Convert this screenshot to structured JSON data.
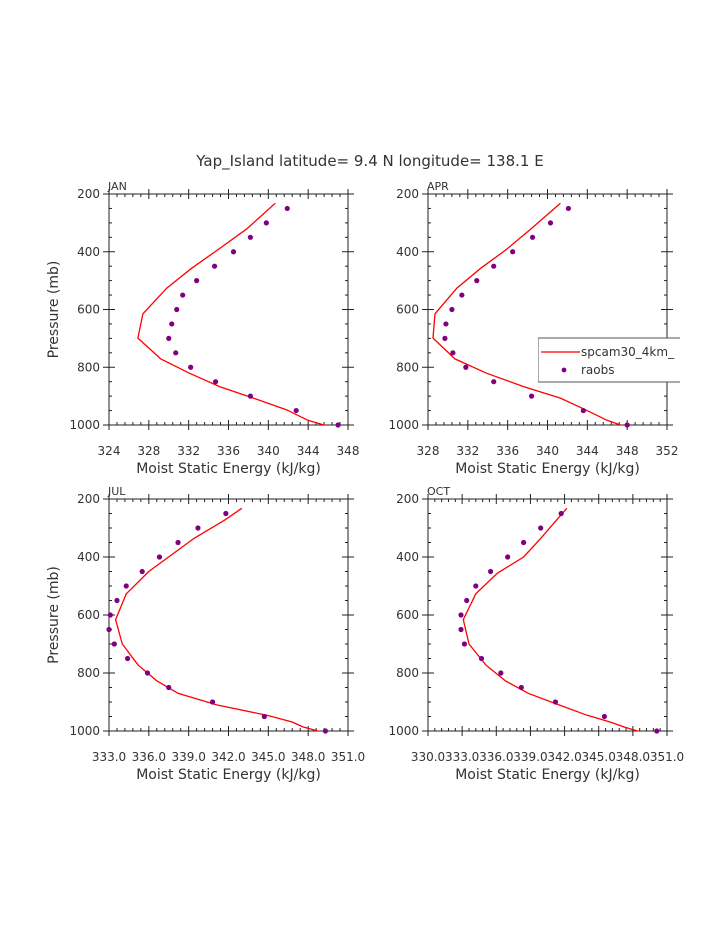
{
  "figure": {
    "title": "Yap_Island  latitude= 9.4 N longitude= 138.1 E"
  },
  "colors": {
    "model_line": "#ff0000",
    "obs_marker": "#800080",
    "axis": "#222222",
    "text": "#333333"
  },
  "chart_data": [
    {
      "type": "line",
      "panel": "JAN",
      "title": "JAN",
      "xlabel": "Moist Static Energy (kJ/kg)",
      "ylabel": "Pressure (mb)",
      "xlim": [
        324,
        348
      ],
      "ylim": [
        1000,
        200
      ],
      "y_inverted": true,
      "xticks": [
        324,
        328,
        332,
        336,
        340,
        344,
        348
      ],
      "xtick_labels": [
        "324",
        "328",
        "332",
        "336",
        "340",
        "344",
        "348"
      ],
      "yticks": [
        200,
        400,
        600,
        800,
        1000
      ],
      "ytick_labels": [
        "200",
        "400",
        "600",
        "800",
        "1000"
      ],
      "legend": null,
      "series": [
        {
          "name": "spcam30_4km_",
          "kind": "line",
          "pressure": [
            232,
            322,
            394,
            457,
            526,
            615,
            699,
            771,
            821,
            867,
            907,
            947,
            984,
            1003
          ],
          "mse": [
            340.7,
            337.8,
            334.9,
            332.3,
            329.8,
            327.4,
            326.9,
            329.2,
            332.1,
            335.1,
            338.5,
            341.8,
            344.0,
            345.9
          ]
        },
        {
          "name": "raobs",
          "kind": "marker",
          "pressure": [
            250,
            300,
            350,
            400,
            450,
            500,
            550,
            600,
            650,
            700,
            750,
            800,
            850,
            900,
            950,
            1000
          ],
          "mse": [
            341.9,
            339.8,
            338.2,
            336.5,
            334.6,
            332.8,
            331.4,
            330.8,
            330.3,
            330.0,
            330.7,
            332.2,
            334.7,
            338.2,
            342.8,
            347.0
          ]
        }
      ]
    },
    {
      "type": "line",
      "panel": "APR",
      "title": "APR",
      "xlabel": "Moist Static Energy (kJ/kg)",
      "ylabel": "",
      "xlim": [
        328,
        352
      ],
      "ylim": [
        1000,
        200
      ],
      "y_inverted": true,
      "xticks": [
        328,
        332,
        336,
        340,
        344,
        348,
        352
      ],
      "xtick_labels": [
        "328",
        "332",
        "336",
        "340",
        "344",
        "348",
        "352"
      ],
      "yticks": [
        200,
        400,
        600,
        800,
        1000
      ],
      "ytick_labels": [
        "200",
        "400",
        "600",
        "800",
        "1000"
      ],
      "legend": {
        "placement": "right",
        "entries": [
          {
            "label": "spcam30_4km_",
            "kind": "line"
          },
          {
            "label": "raobs",
            "kind": "marker"
          }
        ]
      },
      "series": [
        {
          "name": "spcam30_4km_",
          "kind": "line",
          "pressure": [
            232,
            322,
            394,
            457,
            526,
            615,
            699,
            771,
            821,
            867,
            907,
            947,
            984,
            1003
          ],
          "mse": [
            341.3,
            338.3,
            335.8,
            333.3,
            330.9,
            328.7,
            328.5,
            330.7,
            333.9,
            337.6,
            341.3,
            343.8,
            346.0,
            347.6
          ]
        },
        {
          "name": "raobs",
          "kind": "marker",
          "pressure": [
            250,
            300,
            350,
            400,
            450,
            500,
            550,
            600,
            650,
            700,
            750,
            800,
            850,
            900,
            950,
            1000
          ],
          "mse": [
            342.1,
            340.3,
            338.5,
            336.5,
            334.6,
            332.9,
            331.4,
            330.4,
            329.8,
            329.7,
            330.5,
            331.8,
            334.6,
            338.4,
            343.6,
            348.0
          ]
        }
      ]
    },
    {
      "type": "line",
      "panel": "JUL",
      "title": "JUL",
      "xlabel": "Moist Static Energy (kJ/kg)",
      "ylabel": "Pressure (mb)",
      "xlim": [
        333,
        351
      ],
      "ylim": [
        1000,
        200
      ],
      "y_inverted": true,
      "xticks": [
        333,
        336,
        339,
        342,
        345,
        348,
        351
      ],
      "xtick_labels": [
        "333.0",
        "336.0",
        "339.0",
        "342.0",
        "345.0",
        "348.0",
        "351.0"
      ],
      "yticks": [
        200,
        400,
        600,
        800,
        1000
      ],
      "ytick_labels": [
        "200",
        "400",
        "600",
        "800",
        "1000"
      ],
      "legend": null,
      "series": [
        {
          "name": "spcam30_4km_",
          "kind": "line",
          "pressure": [
            232,
            273,
            336,
            450,
            527,
            616,
            700,
            773,
            827,
            870,
            910,
            946,
            969,
            986,
            1006
          ],
          "mse": [
            343.0,
            341.7,
            339.4,
            336.0,
            334.3,
            333.5,
            334.0,
            335.2,
            336.6,
            338.2,
            341.1,
            344.9,
            346.8,
            347.6,
            349.2
          ]
        },
        {
          "name": "raobs",
          "kind": "marker",
          "pressure": [
            250,
            300,
            350,
            400,
            450,
            500,
            550,
            600,
            650,
            700,
            750,
            800,
            850,
            900,
            950,
            1000
          ],
          "mse": [
            341.8,
            339.7,
            338.2,
            336.8,
            335.5,
            334.3,
            333.6,
            333.1,
            333.0,
            333.4,
            334.4,
            335.9,
            337.5,
            340.8,
            344.7,
            349.3
          ]
        }
      ]
    },
    {
      "type": "line",
      "panel": "OCT",
      "title": "OCT",
      "xlabel": "Moist Static Energy (kJ/kg)",
      "ylabel": "",
      "xlim": [
        330,
        351
      ],
      "ylim": [
        1000,
        200
      ],
      "y_inverted": true,
      "xticks": [
        330,
        333,
        336,
        339,
        342,
        345,
        348,
        351
      ],
      "xtick_labels": [
        "330.0",
        "333.0",
        "336.0",
        "339.0",
        "342.0",
        "345.0",
        "348.0",
        "351.0"
      ],
      "yticks": [
        200,
        400,
        600,
        800,
        1000
      ],
      "ytick_labels": [
        "200",
        "400",
        "600",
        "800",
        "1000"
      ],
      "legend": null,
      "series": [
        {
          "name": "spcam30_4km_",
          "kind": "line",
          "pressure": [
            232,
            272,
            336,
            400,
            456,
            527,
            616,
            700,
            773,
            827,
            870,
            910,
            946,
            969,
            986,
            1006
          ],
          "mse": [
            342.2,
            341.3,
            339.9,
            338.4,
            336.1,
            334.2,
            333.1,
            333.6,
            335.1,
            336.8,
            338.8,
            341.5,
            344.0,
            346.0,
            347.2,
            348.9
          ]
        },
        {
          "name": "raobs",
          "kind": "marker",
          "pressure": [
            250,
            300,
            350,
            400,
            450,
            500,
            550,
            600,
            650,
            700,
            750,
            800,
            850,
            900,
            950,
            1000
          ],
          "mse": [
            341.7,
            339.9,
            338.4,
            337.0,
            335.5,
            334.2,
            333.4,
            332.9,
            332.9,
            333.2,
            334.7,
            336.4,
            338.2,
            341.2,
            345.5,
            350.1
          ]
        }
      ]
    }
  ]
}
